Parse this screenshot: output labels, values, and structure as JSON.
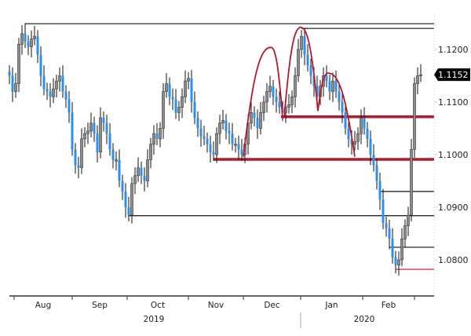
{
  "chart_data": {
    "type": "candlestick",
    "title": "",
    "xlabel": "",
    "ylabel": "",
    "ylim": [
      1.0733,
      1.1265
    ],
    "grid": false,
    "y_ticks": [
      "1.1200",
      "1.1100",
      "1.1000",
      "1.0900",
      "1.0800"
    ],
    "y_tick_values": [
      1.12,
      1.11,
      1.1,
      1.09,
      1.08
    ],
    "last_price_label": "1.1152",
    "last_price": 1.1152,
    "months": [
      {
        "label": "Aug",
        "start": 1.5,
        "end": 20
      },
      {
        "label": "Sep",
        "start": 20,
        "end": 37.5
      },
      {
        "label": "Oct",
        "start": 37.5,
        "end": 57
      },
      {
        "label": "Nov",
        "start": 57,
        "end": 74.5
      },
      {
        "label": "Dec",
        "start": 74.5,
        "end": 92.75
      },
      {
        "label": "Jan",
        "start": 92.75,
        "end": 112.5
      },
      {
        "label": "Feb",
        "start": 112.5,
        "end": 129
      }
    ],
    "month_ticks": [
      1.5,
      20,
      37.5,
      57,
      74.5,
      92.75,
      112.5,
      129
    ],
    "years": [
      {
        "label": "2019",
        "center": 46
      },
      {
        "label": "2020",
        "center": 113
      }
    ],
    "year_separator": 92.75,
    "colors": {
      "up": "#8c8c8c",
      "down": "#2b8ff0",
      "wick": "#111111",
      "red_line": "#b5192e",
      "red_thin": "#e8333f",
      "black_line": "#111111"
    },
    "closes": [
      1.115,
      1.112,
      1.1135,
      1.121,
      1.123,
      1.1215,
      1.1205,
      1.122,
      1.1225,
      1.119,
      1.115,
      1.1125,
      1.112,
      1.111,
      1.1125,
      1.114,
      1.115,
      1.112,
      1.1105,
      1.108,
      1.101,
      1.098,
      1.0975,
      1.103,
      1.104,
      1.1045,
      1.106,
      1.104,
      1.1005,
      1.107,
      1.106,
      1.104,
      1.101,
      1.099,
      1.099,
      1.095,
      1.093,
      1.09,
      1.0885,
      1.0945,
      1.096,
      1.0975,
      1.096,
      1.095,
      1.099,
      1.102,
      1.104,
      1.103,
      1.105,
      1.112,
      1.1135,
      1.111,
      1.1105,
      1.108,
      1.109,
      1.111,
      1.114,
      1.1145,
      1.11,
      1.107,
      1.105,
      1.1035,
      1.103,
      1.102,
      1.1005,
      1.1,
      1.104,
      1.106,
      1.1065,
      1.1045,
      1.104,
      1.102,
      1.102,
      1.101,
      1.1,
      1.102,
      1.106,
      1.108,
      1.107,
      1.105,
      1.108,
      1.11,
      1.112,
      1.113,
      1.111,
      1.11,
      1.109,
      1.108,
      1.109,
      1.1095,
      1.111,
      1.115,
      1.12,
      1.1225,
      1.119,
      1.117,
      1.115,
      1.113,
      1.111,
      1.113,
      1.115,
      1.114,
      1.112,
      1.114,
      1.112,
      1.11,
      1.108,
      1.105,
      1.103,
      1.102,
      1.1025,
      1.104,
      1.107,
      1.105,
      1.103,
      1.1,
      1.098,
      1.095,
      1.0915,
      1.087,
      1.086,
      1.084,
      1.0805,
      1.079,
      1.08,
      1.084,
      1.0865,
      1.0885,
      1.101,
      1.1135,
      1.115,
      1.1152
    ],
    "horizontal_lines": [
      {
        "price": 1.1249,
        "from": 5,
        "style": "black"
      },
      {
        "price": 1.124,
        "from": 93,
        "style": "black"
      },
      {
        "price": 1.1072,
        "from": 86.5,
        "style": "red-thick"
      },
      {
        "price": 1.0991,
        "from": 65,
        "style": "red-thick"
      },
      {
        "price": 1.093,
        "from": 118,
        "style": "black"
      },
      {
        "price": 1.0884,
        "from": 38,
        "style": "black"
      },
      {
        "price": 1.0824,
        "from": 121,
        "style": "black"
      },
      {
        "price": 1.0782,
        "from": 123,
        "style": "red-thin"
      }
    ],
    "arcs": [
      {
        "start": [
          74.5,
          1.0996
        ],
        "peak": [
          83.25,
          1.1204
        ],
        "end": [
          87,
          1.107
        ]
      },
      {
        "start": [
          87.5,
          1.107
        ],
        "peak": [
          92.75,
          1.1242
        ],
        "end": [
          98.25,
          1.1083
        ]
      },
      {
        "start": [
          98.25,
          1.1083
        ],
        "peak": [
          101.5,
          1.1155
        ],
        "end": [
          110,
          1.0996
        ]
      }
    ]
  }
}
